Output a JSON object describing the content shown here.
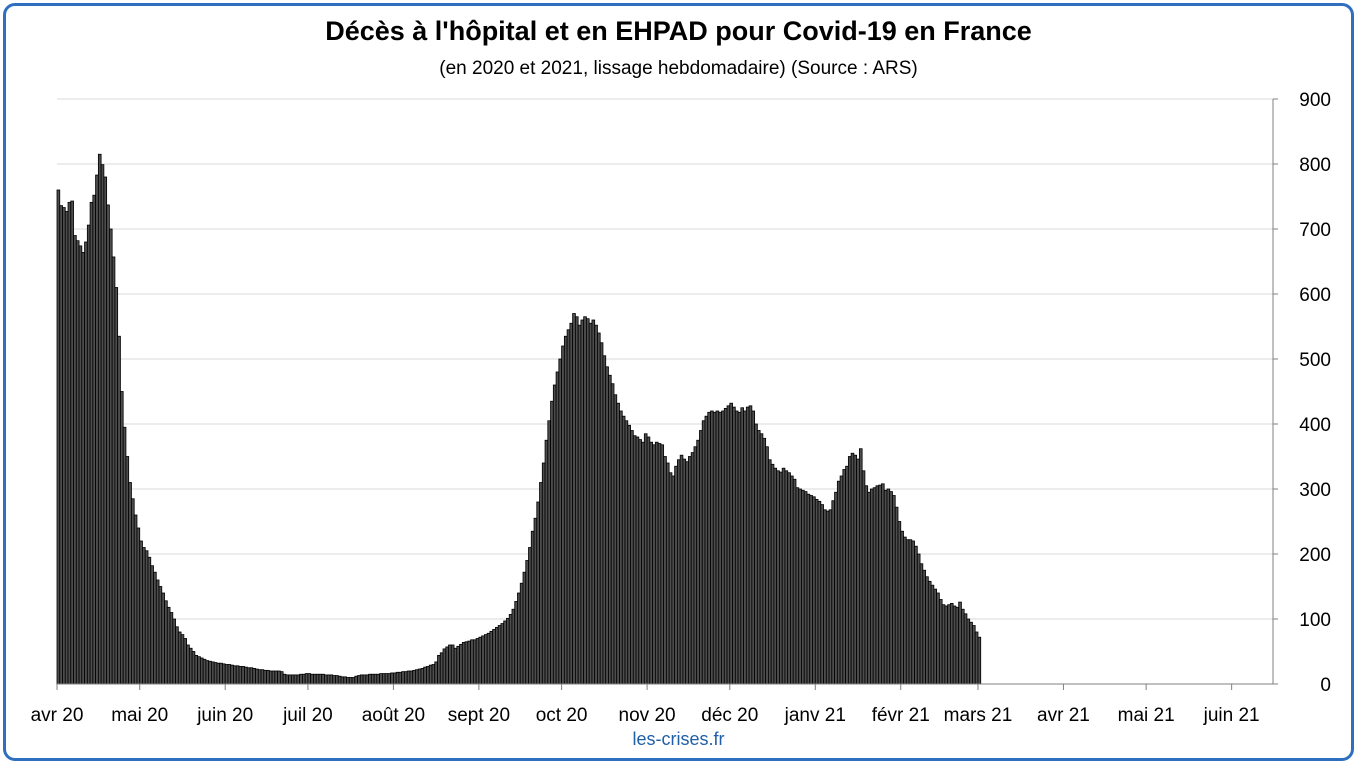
{
  "title": "Décès à l'hôpital et en EHPAD pour Covid-19 en France",
  "subtitle": "(en 2020 et 2021, lissage hebdomadaire) (Source : ARS)",
  "source_label": "les-crises.fr",
  "colors": {
    "bar_fill": "#4d4d4d",
    "bar_stroke": "#000000",
    "grid": "#d9d9d9",
    "frame": "#2f6fbf",
    "source": "#1f5fa8"
  },
  "chart_data": {
    "type": "bar",
    "title": "Décès à l'hôpital et en EHPAD pour Covid-19 en France",
    "subtitle": "(en 2020 et 2021, lissage hebdomadaire) (Source : ARS)",
    "xlabel": "",
    "ylabel": "",
    "ylim": [
      0,
      900
    ],
    "y_ticks": [
      0,
      100,
      200,
      300,
      400,
      500,
      600,
      700,
      800,
      900
    ],
    "y_axis_side": "right",
    "grid": true,
    "x_ticks": [
      "avr 20",
      "mai 20",
      "juin 20",
      "juil 20",
      "août 20",
      "sept 20",
      "oct 20",
      "nov 20",
      "déc 20",
      "janv 21",
      "févr 21",
      "mars 21",
      "avr 21",
      "mai 21",
      "juin 21"
    ],
    "x_tick_day_index": [
      0,
      30,
      61,
      91,
      122,
      153,
      183,
      214,
      244,
      275,
      306,
      334,
      365,
      395,
      426
    ],
    "x_start": "2020-04-01",
    "frequency": "daily",
    "values": [
      760,
      736,
      733,
      727,
      741,
      743,
      690,
      682,
      674,
      664,
      680,
      706,
      741,
      752,
      783,
      815,
      799,
      780,
      737,
      700,
      657,
      610,
      535,
      450,
      395,
      350,
      310,
      285,
      260,
      240,
      220,
      210,
      205,
      195,
      182,
      172,
      160,
      150,
      140,
      128,
      118,
      110,
      100,
      88,
      80,
      76,
      70,
      60,
      55,
      50,
      44,
      42,
      40,
      38,
      36,
      35,
      34,
      33,
      32,
      32,
      31,
      30,
      30,
      29,
      28,
      28,
      27,
      27,
      26,
      25,
      25,
      24,
      23,
      22,
      22,
      21,
      21,
      20,
      20,
      20,
      20,
      19,
      15,
      14,
      14,
      14,
      14,
      14,
      15,
      15,
      16,
      16,
      15,
      15,
      15,
      15,
      15,
      14,
      14,
      14,
      13,
      13,
      12,
      11,
      11,
      10,
      10,
      10,
      12,
      13,
      14,
      14,
      14,
      15,
      15,
      15,
      15,
      16,
      16,
      16,
      16,
      17,
      17,
      18,
      18,
      19,
      19,
      20,
      20,
      21,
      22,
      23,
      24,
      26,
      27,
      29,
      30,
      34,
      44,
      48,
      54,
      57,
      60,
      60,
      55,
      58,
      61,
      64,
      65,
      66,
      68,
      68,
      70,
      72,
      74,
      76,
      78,
      81,
      84,
      87,
      90,
      93,
      97,
      101,
      107,
      115,
      127,
      140,
      155,
      172,
      190,
      210,
      235,
      255,
      280,
      310,
      340,
      375,
      405,
      435,
      460,
      480,
      500,
      520,
      535,
      545,
      555,
      570,
      565,
      552,
      560,
      565,
      562,
      555,
      560,
      552,
      540,
      525,
      505,
      488,
      475,
      462,
      445,
      432,
      420,
      412,
      405,
      398,
      390,
      382,
      380,
      376,
      372,
      385,
      380,
      372,
      368,
      372,
      370,
      368,
      350,
      340,
      325,
      320,
      335,
      345,
      352,
      346,
      342,
      350,
      356,
      365,
      375,
      390,
      405,
      412,
      418,
      420,
      418,
      420,
      418,
      420,
      424,
      428,
      432,
      426,
      420,
      418,
      425,
      420,
      426,
      428,
      420,
      400,
      390,
      385,
      378,
      365,
      345,
      338,
      332,
      328,
      326,
      332,
      328,
      325,
      320,
      315,
      302,
      300,
      298,
      296,
      292,
      290,
      288,
      284,
      281,
      276,
      268,
      266,
      268,
      282,
      295,
      312,
      320,
      330,
      335,
      350,
      355,
      352,
      346,
      362,
      328,
      305,
      295,
      300,
      302,
      305,
      306,
      308,
      298,
      300,
      296,
      290,
      272,
      250,
      235,
      226,
      222,
      222,
      220,
      212,
      200,
      185,
      175,
      165,
      158,
      152,
      146,
      140,
      130,
      122,
      120,
      122,
      124,
      120,
      118,
      126,
      115,
      108,
      100,
      95,
      90,
      80,
      72
    ]
  }
}
